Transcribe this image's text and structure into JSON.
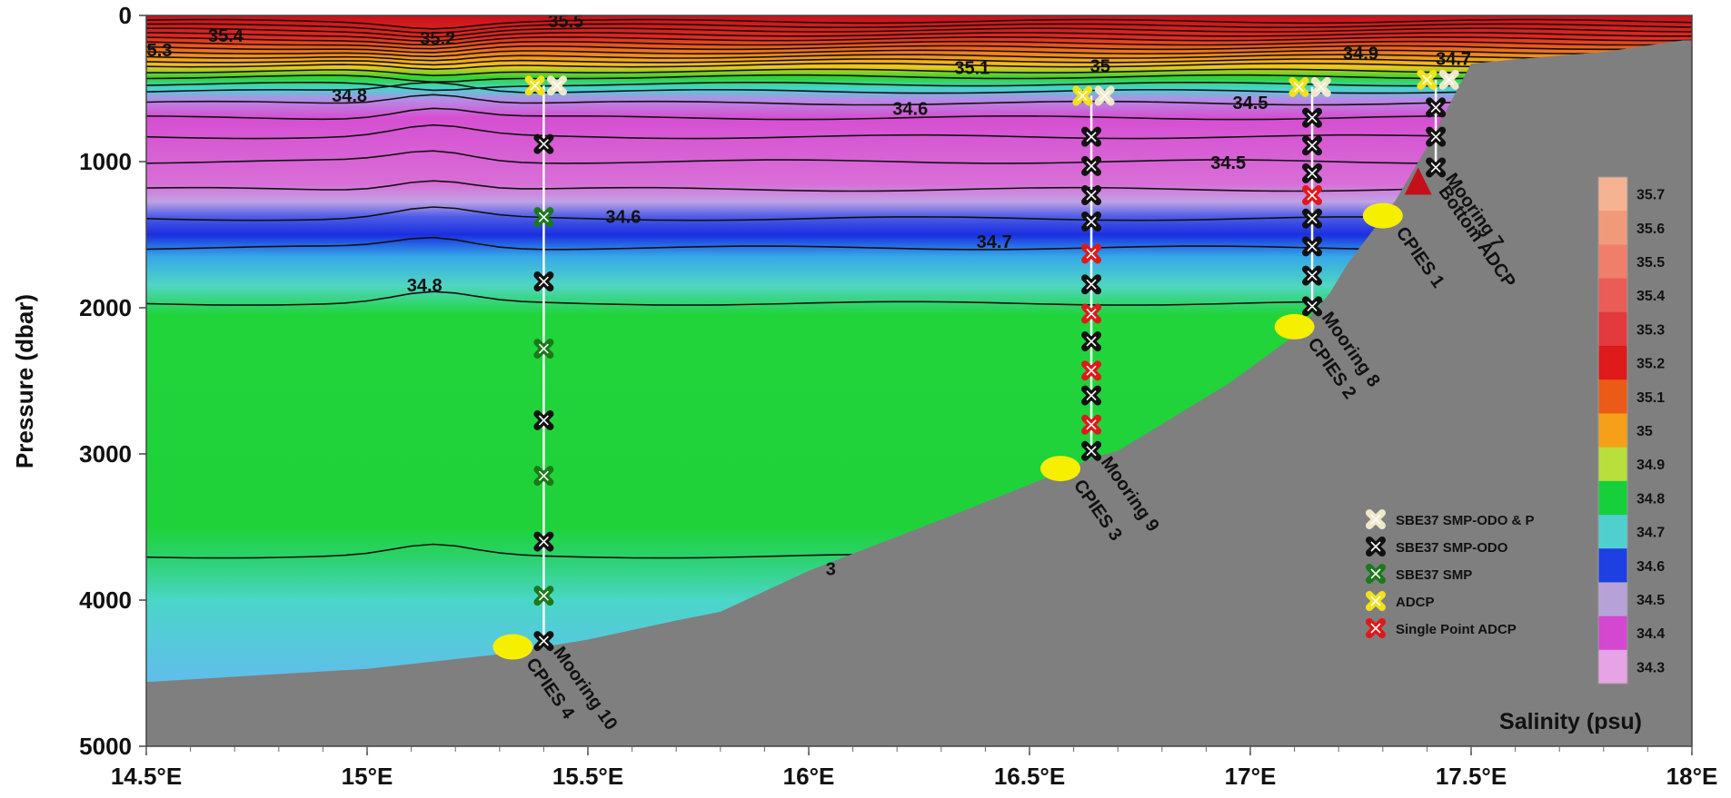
{
  "chart_data": {
    "type": "heatmap",
    "title": "",
    "xlabel": "",
    "ylabel": "Pressure (dbar)",
    "colorbar_label": "Salinity (psu)",
    "xlim": [
      14.5,
      18.0
    ],
    "ylim": [
      5000,
      0
    ],
    "x_ticks": [
      14.5,
      15.0,
      15.5,
      16.0,
      16.5,
      17.0,
      17.5,
      18.0
    ],
    "x_tick_labels": [
      "14.5°E",
      "15°E",
      "15.5°E",
      "16°E",
      "16.5°E",
      "17°E",
      "17.5°E",
      "18°E"
    ],
    "y_ticks": [
      0,
      1000,
      2000,
      3000,
      4000,
      5000
    ],
    "y_tick_labels": [
      "0",
      "1000",
      "2000",
      "3000",
      "4000",
      "5000"
    ],
    "colorbar_ticks": [
      "35.7",
      "35.6",
      "35.5",
      "35.4",
      "35.3",
      "35.2",
      "35.1",
      "35",
      "34.9",
      "34.8",
      "34.7",
      "34.6",
      "34.5",
      "34.4",
      "34.3"
    ],
    "colorbar_colors": [
      "#f6b391",
      "#f19a7a",
      "#ef7f6a",
      "#ea5c56",
      "#e23a3d",
      "#de1a1a",
      "#ec5a17",
      "#f5a018",
      "#b9df3c",
      "#17cf3a",
      "#4fd0cf",
      "#1e3fe2",
      "#b7a2d8",
      "#d447cf",
      "#e6a3e6"
    ],
    "salinity_bands": [
      {
        "depth_range": [
          0,
          200
        ],
        "salinity": 35.3
      },
      {
        "depth_range": [
          200,
          350
        ],
        "salinity": 35.0
      },
      {
        "depth_range": [
          350,
          500
        ],
        "salinity": 34.9
      },
      {
        "depth_range": [
          500,
          1200
        ],
        "salinity": 34.45
      },
      {
        "depth_range": [
          1200,
          1400
        ],
        "salinity": 34.6
      },
      {
        "depth_range": [
          1400,
          1600
        ],
        "salinity": 34.7
      },
      {
        "depth_range": [
          1600,
          1950
        ],
        "salinity": 34.75
      },
      {
        "depth_range": [
          1950,
          3650
        ],
        "salinity": 34.85
      },
      {
        "depth_range": [
          3650,
          5000
        ],
        "salinity": 34.75
      }
    ],
    "contour_labels": [
      {
        "text": "35.5",
        "x": 15.45,
        "p": 30
      },
      {
        "text": "35.4",
        "x": 14.68,
        "p": 130
      },
      {
        "text": "5.3",
        "x": 14.53,
        "p": 230
      },
      {
        "text": "35.2",
        "x": 15.16,
        "p": 150
      },
      {
        "text": "35.1",
        "x": 16.37,
        "p": 350
      },
      {
        "text": "35",
        "x": 16.66,
        "p": 340
      },
      {
        "text": "34.9",
        "x": 17.25,
        "p": 250
      },
      {
        "text": "34.7",
        "x": 17.46,
        "p": 290
      },
      {
        "text": "34.8",
        "x": 14.96,
        "p": 540
      },
      {
        "text": "34.6",
        "x": 16.23,
        "p": 630
      },
      {
        "text": "34.5",
        "x": 17.0,
        "p": 590
      },
      {
        "text": "34.5",
        "x": 16.95,
        "p": 1000
      },
      {
        "text": "34.6",
        "x": 15.58,
        "p": 1370
      },
      {
        "text": "34.7",
        "x": 16.42,
        "p": 1540
      },
      {
        "text": "34.8",
        "x": 15.13,
        "p": 1840
      },
      {
        "text": "3",
        "x": 16.05,
        "p": 3780
      }
    ],
    "moorings": [
      {
        "name": "Mooring 10",
        "x": 15.4,
        "top": 480,
        "bottom": 4280
      },
      {
        "name": "Mooring 9",
        "x": 16.64,
        "top": 550,
        "bottom": 2980
      },
      {
        "name": "Mooring 8",
        "x": 17.14,
        "top": 490,
        "bottom": 1990
      },
      {
        "name": "Mooring 7",
        "x": 17.42,
        "top": 440,
        "bottom": 1040
      }
    ],
    "instruments": [
      {
        "type": "ADCP",
        "x": 15.38,
        "p": 480
      },
      {
        "type": "SBE37 SMP-ODO & P",
        "x": 15.43,
        "p": 480
      },
      {
        "type": "SBE37 SMP-ODO",
        "x": 15.4,
        "p": 880
      },
      {
        "type": "SBE37 SMP",
        "x": 15.4,
        "p": 1380
      },
      {
        "type": "SBE37 SMP-ODO",
        "x": 15.4,
        "p": 1820
      },
      {
        "type": "SBE37 SMP",
        "x": 15.4,
        "p": 2280
      },
      {
        "type": "SBE37 SMP-ODO",
        "x": 15.4,
        "p": 2770
      },
      {
        "type": "SBE37 SMP",
        "x": 15.4,
        "p": 3150
      },
      {
        "type": "SBE37 SMP-ODO",
        "x": 15.4,
        "p": 3600
      },
      {
        "type": "SBE37 SMP",
        "x": 15.4,
        "p": 3970
      },
      {
        "type": "SBE37 SMP-ODO",
        "x": 15.4,
        "p": 4280
      },
      {
        "type": "ADCP",
        "x": 16.62,
        "p": 550
      },
      {
        "type": "SBE37 SMP-ODO & P",
        "x": 16.67,
        "p": 550
      },
      {
        "type": "SBE37 SMP-ODO",
        "x": 16.64,
        "p": 830
      },
      {
        "type": "SBE37 SMP-ODO",
        "x": 16.64,
        "p": 1030
      },
      {
        "type": "SBE37 SMP-ODO",
        "x": 16.64,
        "p": 1230
      },
      {
        "type": "SBE37 SMP-ODO",
        "x": 16.64,
        "p": 1410
      },
      {
        "type": "Single Point ADCP",
        "x": 16.64,
        "p": 1630
      },
      {
        "type": "SBE37 SMP-ODO",
        "x": 16.64,
        "p": 1840
      },
      {
        "type": "Single Point ADCP",
        "x": 16.64,
        "p": 2040
      },
      {
        "type": "SBE37 SMP-ODO",
        "x": 16.64,
        "p": 2230
      },
      {
        "type": "Single Point ADCP",
        "x": 16.64,
        "p": 2430
      },
      {
        "type": "SBE37 SMP-ODO",
        "x": 16.64,
        "p": 2600
      },
      {
        "type": "Single Point ADCP",
        "x": 16.64,
        "p": 2800
      },
      {
        "type": "SBE37 SMP-ODO",
        "x": 16.64,
        "p": 2980
      },
      {
        "type": "ADCP",
        "x": 17.11,
        "p": 490
      },
      {
        "type": "SBE37 SMP-ODO & P",
        "x": 17.16,
        "p": 490
      },
      {
        "type": "SBE37 SMP-ODO",
        "x": 17.14,
        "p": 700
      },
      {
        "type": "SBE37 SMP-ODO",
        "x": 17.14,
        "p": 890
      },
      {
        "type": "SBE37 SMP-ODO",
        "x": 17.14,
        "p": 1080
      },
      {
        "type": "Single Point ADCP",
        "x": 17.14,
        "p": 1230
      },
      {
        "type": "SBE37 SMP-ODO",
        "x": 17.14,
        "p": 1390
      },
      {
        "type": "SBE37 SMP-ODO",
        "x": 17.14,
        "p": 1580
      },
      {
        "type": "SBE37 SMP-ODO",
        "x": 17.14,
        "p": 1780
      },
      {
        "type": "SBE37 SMP-ODO",
        "x": 17.14,
        "p": 1990
      },
      {
        "type": "ADCP",
        "x": 17.4,
        "p": 440
      },
      {
        "type": "SBE37 SMP-ODO & P",
        "x": 17.45,
        "p": 440
      },
      {
        "type": "SBE37 SMP-ODO",
        "x": 17.42,
        "p": 630
      },
      {
        "type": "SBE37 SMP-ODO",
        "x": 17.42,
        "p": 830
      },
      {
        "type": "SBE37 SMP-ODO",
        "x": 17.42,
        "p": 1040
      }
    ],
    "cpies": [
      {
        "name": "CPIES 1",
        "x": 17.3,
        "p": 1370
      },
      {
        "name": "CPIES 2",
        "x": 17.1,
        "p": 2130
      },
      {
        "name": "CPIES 3",
        "x": 16.57,
        "p": 3100
      },
      {
        "name": "CPIES 4",
        "x": 15.33,
        "p": 4320
      }
    ],
    "bottom_adcp": {
      "name": "Bottom ADCP",
      "x": 17.38,
      "p": 1140
    },
    "bathymetry": [
      [
        14.5,
        4560
      ],
      [
        15.0,
        4470
      ],
      [
        15.3,
        4370
      ],
      [
        15.5,
        4270
      ],
      [
        15.7,
        4140
      ],
      [
        15.8,
        4080
      ],
      [
        16.0,
        3800
      ],
      [
        16.3,
        3450
      ],
      [
        16.55,
        3150
      ],
      [
        16.65,
        3020
      ],
      [
        16.7,
        2980
      ],
      [
        16.95,
        2520
      ],
      [
        17.1,
        2190
      ],
      [
        17.18,
        1900
      ],
      [
        17.22,
        1700
      ],
      [
        17.28,
        1460
      ],
      [
        17.33,
        1260
      ],
      [
        17.4,
        900
      ],
      [
        17.5,
        330
      ],
      [
        17.6,
        300
      ],
      [
        17.8,
        250
      ],
      [
        17.98,
        170
      ],
      [
        18.0,
        170
      ]
    ],
    "legend": [
      {
        "label": "SBE37 SMP-ODO & P",
        "color": "#efe8c8"
      },
      {
        "label": "SBE37 SMP-ODO",
        "color": "#111111"
      },
      {
        "label": "SBE37 SMP",
        "color": "#1a7a1a"
      },
      {
        "label": "ADCP",
        "color": "#f2e21a"
      },
      {
        "label": "Single Point ADCP",
        "color": "#e01818"
      }
    ],
    "legend_position": "lower-right",
    "colorbar_position": "right",
    "grid": false
  }
}
